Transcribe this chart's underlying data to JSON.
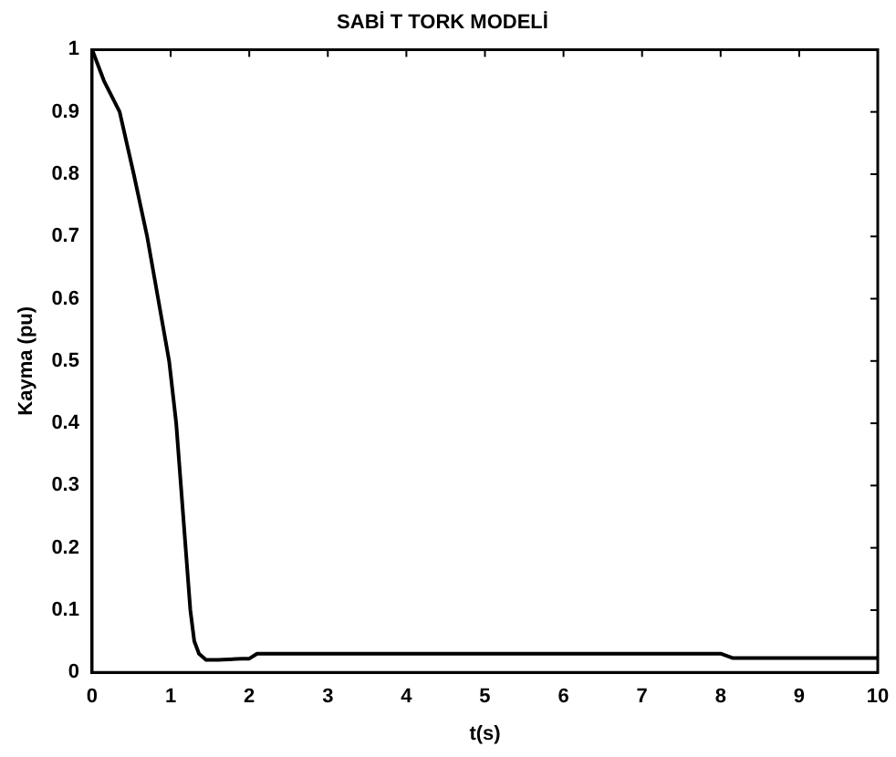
{
  "chart_data": {
    "type": "line",
    "title": "SABİ T TORK MODELİ",
    "xlabel": "t(s)",
    "ylabel": "Kayma (pu)",
    "xlim": [
      0,
      10
    ],
    "xticks": [
      0,
      1,
      2,
      3,
      4,
      5,
      6,
      7,
      8,
      9,
      10
    ],
    "ylim": [
      0,
      1
    ],
    "yticks": [
      0,
      0.1,
      0.2,
      0.3,
      0.4,
      0.5,
      0.6,
      0.7,
      0.8,
      0.9,
      1
    ],
    "grid": false,
    "legend": false,
    "marker": "none",
    "line_style": "solid",
    "series": [
      {
        "color": "#000000",
        "x": [
          0,
          0.15,
          0.35,
          0.53,
          0.7,
          0.84,
          0.98,
          1.07,
          1.19,
          1.25,
          1.3,
          1.36,
          1.45,
          1.6,
          1.9,
          2.0,
          2.1,
          5,
          8.0,
          8.15,
          10
        ],
        "values": [
          1,
          0.95,
          0.9,
          0.8,
          0.7,
          0.6,
          0.5,
          0.4,
          0.2,
          0.1,
          0.05,
          0.03,
          0.02,
          0.02,
          0.022,
          0.022,
          0.03,
          0.03,
          0.03,
          0.023,
          0.023
        ]
      }
    ]
  }
}
